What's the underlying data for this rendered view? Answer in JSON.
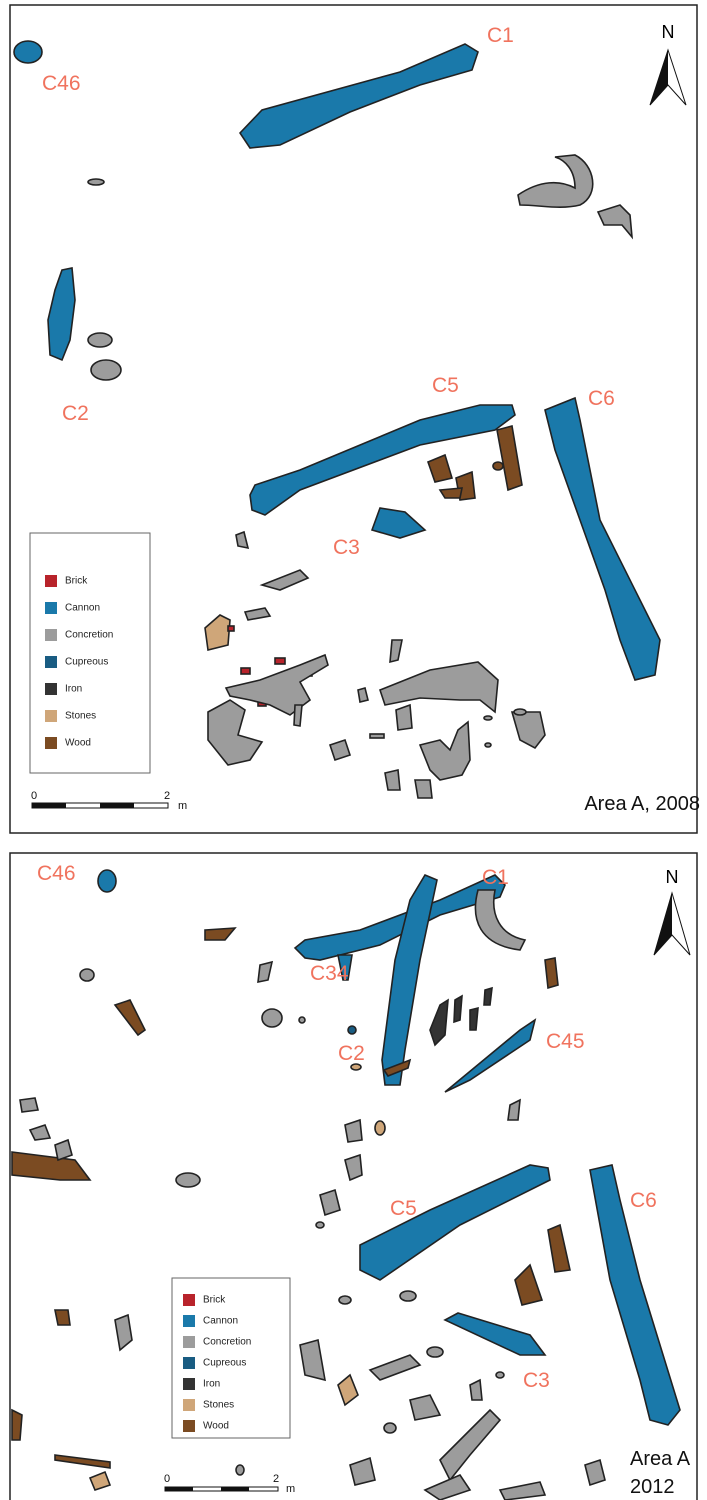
{
  "panels": [
    {
      "north": "N",
      "labels": [
        "C1",
        "C46",
        "C2",
        "C5",
        "C6",
        "C3"
      ],
      "legend": [
        {
          "label": "Brick",
          "color": "#b8232b"
        },
        {
          "label": "Cannon",
          "color": "#1a79aa"
        },
        {
          "label": "Concretion",
          "color": "#9c9c9c"
        },
        {
          "label": "Cupreous",
          "color": "#195c82"
        },
        {
          "label": "Iron",
          "color": "#333333"
        },
        {
          "label": "Stones",
          "color": "#cfa679"
        },
        {
          "label": "Wood",
          "color": "#7b4b22"
        }
      ],
      "scale": [
        "0",
        "2",
        "m"
      ],
      "caption": "Area A, 2008"
    },
    {
      "north": "N",
      "labels": [
        "C46",
        "C1",
        "C34",
        "C2",
        "C45",
        "C5",
        "C6",
        "C3"
      ],
      "legend": [
        {
          "label": "Brick",
          "color": "#b8232b"
        },
        {
          "label": "Cannon",
          "color": "#1a79aa"
        },
        {
          "label": "Concretion",
          "color": "#9c9c9c"
        },
        {
          "label": "Cupreous",
          "color": "#195c82"
        },
        {
          "label": "Iron",
          "color": "#333333"
        },
        {
          "label": "Stones",
          "color": "#cfa679"
        },
        {
          "label": "Wood",
          "color": "#7b4b22"
        }
      ],
      "scale": [
        "0",
        "2",
        "m"
      ],
      "caption": [
        "Area A",
        "2012"
      ]
    }
  ]
}
